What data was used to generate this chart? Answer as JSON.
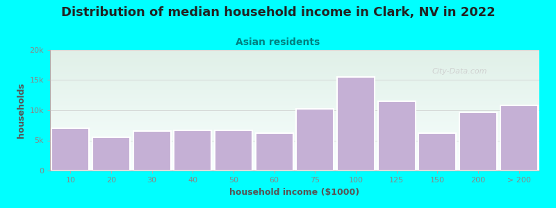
{
  "title": "Distribution of median household income in Clark, NV in 2022",
  "subtitle": "Asian residents",
  "xlabel": "household income ($1000)",
  "ylabel": "households",
  "background_color": "#00FFFF",
  "bar_color": "#c5b0d5",
  "bar_edge_color": "#ffffff",
  "categories": [
    "10",
    "20",
    "30",
    "40",
    "50",
    "60",
    "75",
    "100",
    "125",
    "150",
    "200",
    "> 200"
  ],
  "values": [
    7000,
    5500,
    6500,
    6700,
    6700,
    6200,
    10200,
    15500,
    11500,
    6200,
    9700,
    10800
  ],
  "ylim": [
    0,
    20000
  ],
  "yticks": [
    0,
    5000,
    10000,
    15000,
    20000
  ],
  "ytick_labels": [
    "0",
    "5k",
    "10k",
    "15k",
    "20k"
  ],
  "title_fontsize": 13,
  "subtitle_fontsize": 10,
  "subtitle_color": "#008080",
  "axis_label_color": "#555555",
  "tick_color": "#888888",
  "watermark_text": "City-Data.com",
  "watermark_color": "#cccccc",
  "gradient_top_color": "#e0f0e8",
  "gradient_bottom_color": "#f8fffe"
}
